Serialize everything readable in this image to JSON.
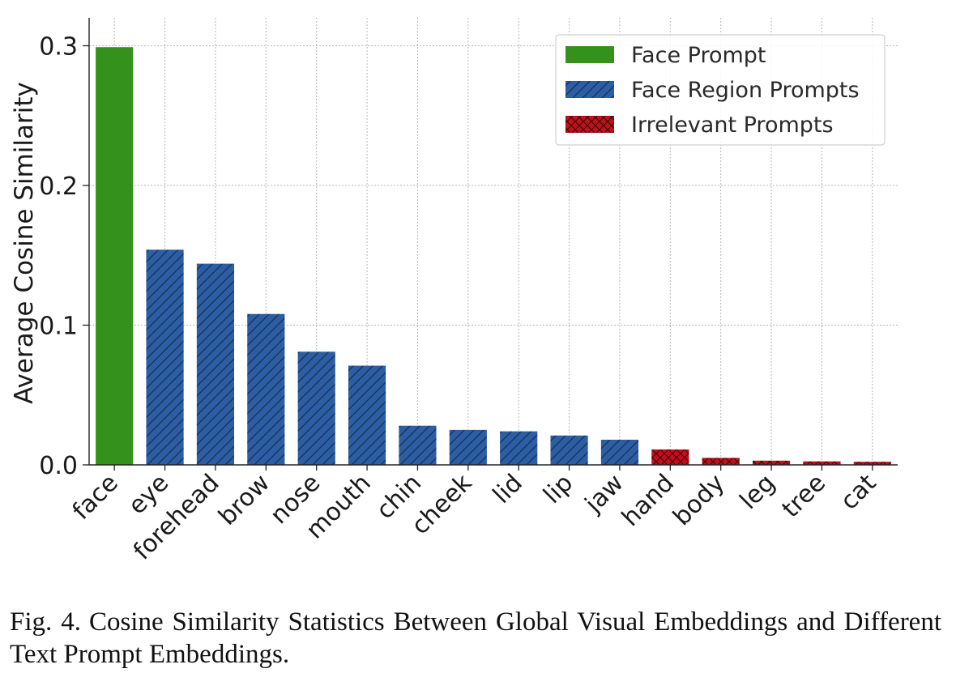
{
  "chart_data": {
    "type": "bar",
    "ylabel": "Average Cosine Similarity",
    "xlabel": "",
    "ylim": [
      0,
      0.32
    ],
    "yticks": [
      0.0,
      0.1,
      0.2,
      0.3
    ],
    "ytick_labels": [
      "0.0",
      "0.1",
      "0.2",
      "0.3"
    ],
    "grid": true,
    "legend_position": "top-right",
    "categories": [
      "face",
      "eye",
      "forehead",
      "brow",
      "nose",
      "mouth",
      "chin",
      "cheek",
      "lid",
      "lip",
      "jaw",
      "hand",
      "body",
      "leg",
      "tree",
      "cat"
    ],
    "values": [
      0.299,
      0.154,
      0.144,
      0.108,
      0.081,
      0.071,
      0.028,
      0.025,
      0.024,
      0.021,
      0.018,
      0.011,
      0.005,
      0.003,
      0.0025,
      0.0022
    ],
    "groups": [
      "face",
      "region",
      "region",
      "region",
      "region",
      "region",
      "region",
      "region",
      "region",
      "region",
      "region",
      "irrelevant",
      "irrelevant",
      "irrelevant",
      "irrelevant",
      "irrelevant"
    ],
    "series": [
      {
        "name": "Face Prompt",
        "key": "face",
        "color": "#34921c",
        "pattern": "none"
      },
      {
        "name": "Face Region Prompts",
        "key": "region",
        "color": "#2b5ea4",
        "pattern": "diagonal-hatch"
      },
      {
        "name": "Irrelevant Prompts",
        "key": "irrelevant",
        "color": "#c0101c",
        "pattern": "cross-hatch"
      }
    ]
  },
  "caption": {
    "label": "Fig. 4.",
    "text": "Cosine Similarity Statistics Between Global Visual Embeddings and Different Text Prompt Embeddings."
  }
}
